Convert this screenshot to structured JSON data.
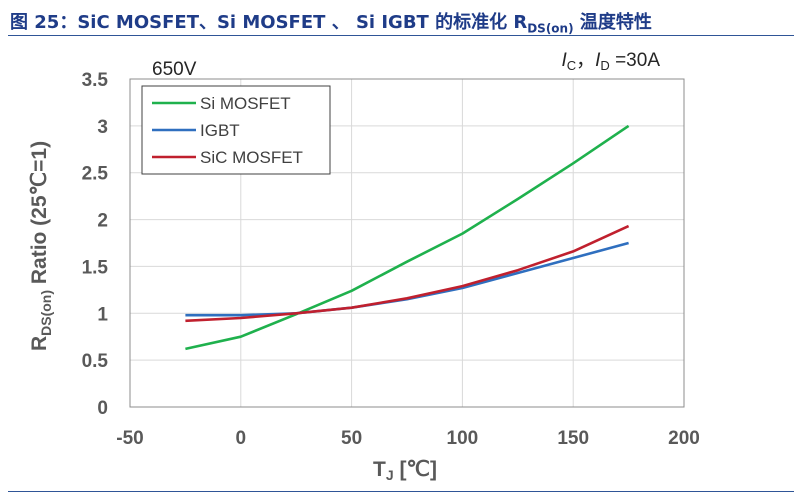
{
  "header": {
    "title_prefix": "图 25：SiC MOSFET、Si MOSFET 、 Si IGBT 的标准化 R",
    "title_sub": "DS(on)",
    "title_suffix": " 温度特性"
  },
  "chart_data": {
    "type": "line",
    "title": "",
    "xlabel_main": "T",
    "xlabel_sub": "J",
    "xlabel_unit": " [℃]",
    "ylabel_main": "R",
    "ylabel_sub": "DS(on)",
    "ylabel_rest": " Ratio (25℃=1)",
    "xlim": [
      -50,
      200
    ],
    "ylim": [
      0,
      3.5
    ],
    "xticks": [
      -50,
      0,
      50,
      100,
      150,
      200
    ],
    "yticks": [
      0,
      0.5,
      1,
      1.5,
      2,
      2.5,
      3,
      3.5
    ],
    "xtick_labels": [
      "-50",
      "0",
      "50",
      "100",
      "150",
      "200"
    ],
    "ytick_labels": [
      "0",
      "0.5",
      "1",
      "1.5",
      "2",
      "2.5",
      "3",
      "3.5"
    ],
    "grid": true,
    "legend_position": "top-left",
    "annotations": {
      "voltage": "650V",
      "current_i": "I",
      "current_c": "C",
      "current_sep": "，",
      "current_id": "I",
      "current_d": "D",
      "current_value": " =30A"
    },
    "series": [
      {
        "name": "Si MOSFET",
        "color": "#1fb14d",
        "x": [
          -25,
          0,
          25,
          50,
          75,
          100,
          125,
          150,
          175
        ],
        "y": [
          0.62,
          0.75,
          0.99,
          1.24,
          1.55,
          1.85,
          2.22,
          2.6,
          3.0
        ]
      },
      {
        "name": "IGBT",
        "color": "#2f6fbf",
        "x": [
          -25,
          0,
          25,
          50,
          75,
          100,
          125,
          150,
          175
        ],
        "y": [
          0.98,
          0.98,
          1.0,
          1.06,
          1.15,
          1.27,
          1.43,
          1.59,
          1.75
        ]
      },
      {
        "name": "SiC MOSFET",
        "color": "#c0202e",
        "x": [
          -25,
          0,
          25,
          50,
          75,
          100,
          125,
          150,
          175
        ],
        "y": [
          0.92,
          0.95,
          1.0,
          1.06,
          1.16,
          1.29,
          1.46,
          1.66,
          1.93
        ]
      }
    ]
  }
}
